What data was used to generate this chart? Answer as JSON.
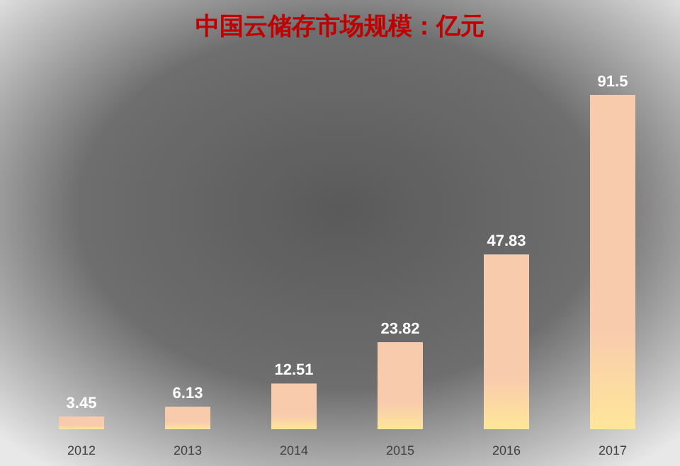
{
  "chart_data": {
    "type": "bar",
    "title": "中国云储存市场规模：亿元",
    "categories": [
      "2012",
      "2013",
      "2014",
      "2015",
      "2016",
      "2017"
    ],
    "values": [
      3.45,
      6.13,
      12.51,
      23.82,
      47.83,
      91.5
    ],
    "color": "#f8cbad",
    "data_labels": true
  }
}
